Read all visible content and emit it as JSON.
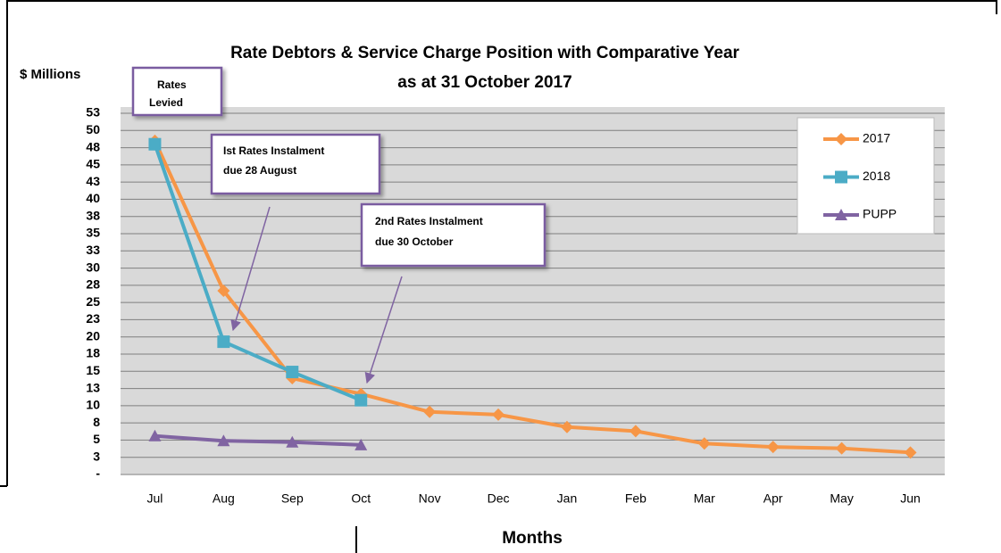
{
  "chart_data": {
    "type": "line",
    "title": "Rate Debtors & Service Charge Position with Comparative Year",
    "subtitle": "as at 31 October 2017",
    "y_label": "$ Millions",
    "x_label": "Months",
    "categories": [
      "Jul",
      "Aug",
      "Sep",
      "Oct",
      "Nov",
      "Dec",
      "Jan",
      "Feb",
      "Mar",
      "Apr",
      "May",
      "Jun"
    ],
    "series": [
      {
        "name": "2017",
        "color": "#f79646",
        "marker": "diamond",
        "values": [
          48.5,
          26.7,
          14.0,
          11.7,
          9.1,
          8.7,
          6.9,
          6.3,
          4.5,
          4.0,
          3.8,
          3.2
        ]
      },
      {
        "name": "2018",
        "color": "#4bacc6",
        "marker": "square",
        "values": [
          48.0,
          19.3,
          14.9,
          10.8,
          null,
          null,
          null,
          null,
          null,
          null,
          null,
          null
        ]
      },
      {
        "name": "PUPP",
        "color": "#8064a2",
        "marker": "triangle",
        "values": [
          5.6,
          4.9,
          4.7,
          4.3,
          null,
          null,
          null,
          null,
          null,
          null,
          null,
          null
        ]
      }
    ],
    "ylim": [
      0,
      52.5
    ],
    "yticks": [
      {
        "value": 0,
        "label": "-"
      },
      {
        "value": 2.5,
        "label": "3"
      },
      5,
      {
        "value": 7.5,
        "label": "8"
      },
      10,
      {
        "value": 12.5,
        "label": "13"
      },
      15,
      {
        "value": 17.5,
        "label": "18"
      },
      20,
      {
        "value": 22.5,
        "label": "23"
      },
      25,
      {
        "value": 27.5,
        "label": "28"
      },
      30,
      {
        "value": 32.5,
        "label": "33"
      },
      35,
      {
        "value": 37.5,
        "label": "38"
      },
      40,
      {
        "value": 42.5,
        "label": "43"
      },
      45,
      {
        "value": 47.5,
        "label": "48"
      },
      50,
      {
        "value": 52.5,
        "label": "53"
      }
    ],
    "grid": true,
    "legend": "top-right",
    "annotations": [
      [
        "Rates",
        "Levied"
      ],
      [
        "Ist Rates Instalment",
        "due 28 August"
      ],
      [
        "2nd Rates Instalment",
        "due 30 October"
      ]
    ]
  }
}
